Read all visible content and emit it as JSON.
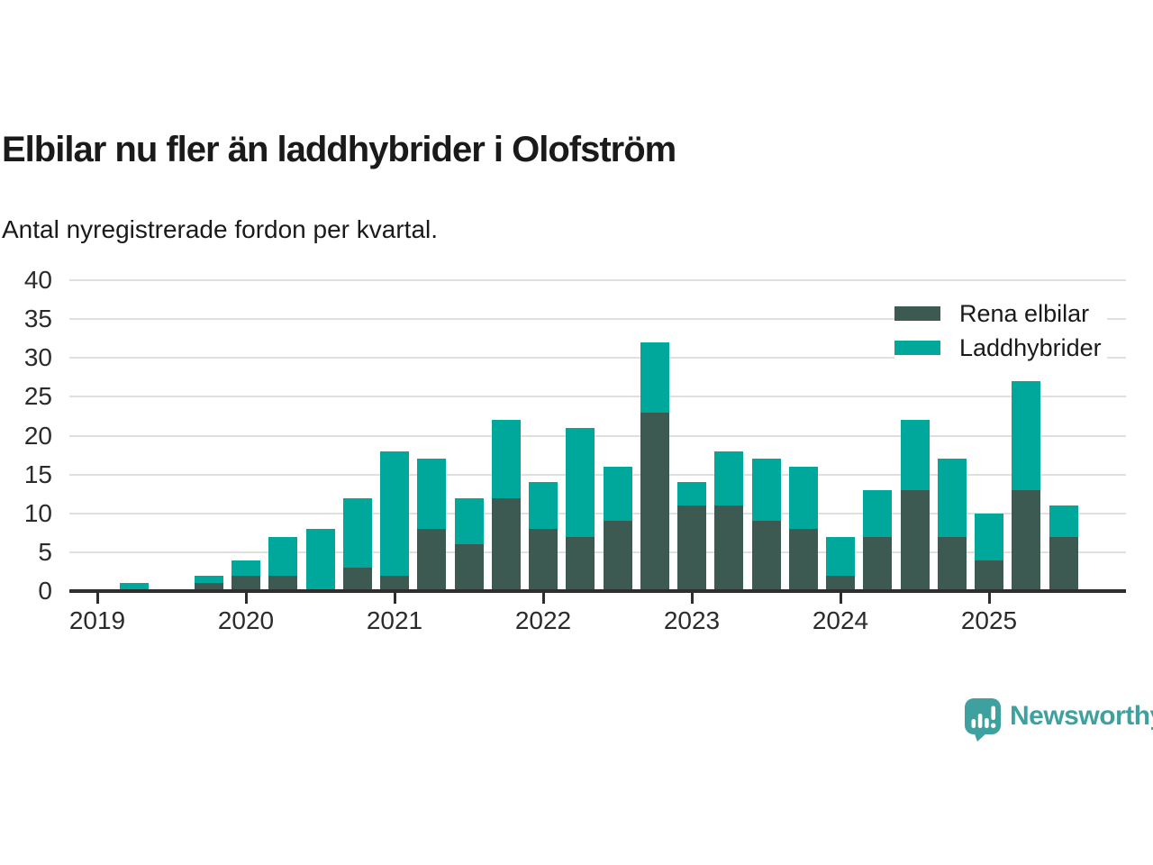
{
  "chart_data": {
    "type": "bar",
    "stacked": true,
    "title": "Elbilar nu fler än laddhybrider i Olofström",
    "subtitle": "Antal nyregistrerade fordon per kvartal.",
    "categories": [
      "2019 Q1",
      "2019 Q2",
      "2019 Q3",
      "2019 Q4",
      "2020 Q1",
      "2020 Q2",
      "2020 Q3",
      "2020 Q4",
      "2021 Q1",
      "2021 Q2",
      "2021 Q3",
      "2021 Q4",
      "2022 Q1",
      "2022 Q2",
      "2022 Q3",
      "2022 Q4",
      "2023 Q1",
      "2023 Q2",
      "2023 Q3",
      "2023 Q4",
      "2024 Q1",
      "2024 Q2",
      "2024 Q3",
      "2024 Q4",
      "2025 Q1",
      "2025 Q2",
      "2025 Q3"
    ],
    "series": [
      {
        "name": "Rena elbilar",
        "color": "#3d5a52",
        "values": [
          0,
          0,
          0,
          1,
          2,
          2,
          0,
          3,
          2,
          8,
          6,
          12,
          8,
          7,
          9,
          23,
          11,
          11,
          9,
          8,
          2,
          7,
          13,
          7,
          4,
          13,
          7
        ]
      },
      {
        "name": "Laddhybrider",
        "color": "#00a79b",
        "values": [
          0,
          1,
          0,
          1,
          2,
          5,
          8,
          9,
          16,
          9,
          6,
          10,
          6,
          14,
          7,
          9,
          3,
          7,
          8,
          8,
          5,
          6,
          9,
          10,
          6,
          14,
          4
        ]
      }
    ],
    "totals": [
      0,
      1,
      0,
      2,
      4,
      7,
      8,
      12,
      18,
      17,
      12,
      22,
      14,
      21,
      16,
      32,
      14,
      18,
      17,
      16,
      7,
      13,
      22,
      17,
      10,
      27,
      11
    ],
    "xlabel": "",
    "ylabel": "",
    "ylim": [
      0,
      40
    ],
    "yticks": [
      0,
      5,
      10,
      15,
      20,
      25,
      30,
      35,
      40
    ],
    "xticks": {
      "labels": [
        "2019",
        "2020",
        "2021",
        "2022",
        "2023",
        "2024",
        "2025"
      ],
      "quarter_interval": 4
    },
    "grid": "horizontal",
    "legend_position": "top-right"
  },
  "branding": {
    "name": "Newsworthy",
    "color": "#3fa0a0"
  }
}
